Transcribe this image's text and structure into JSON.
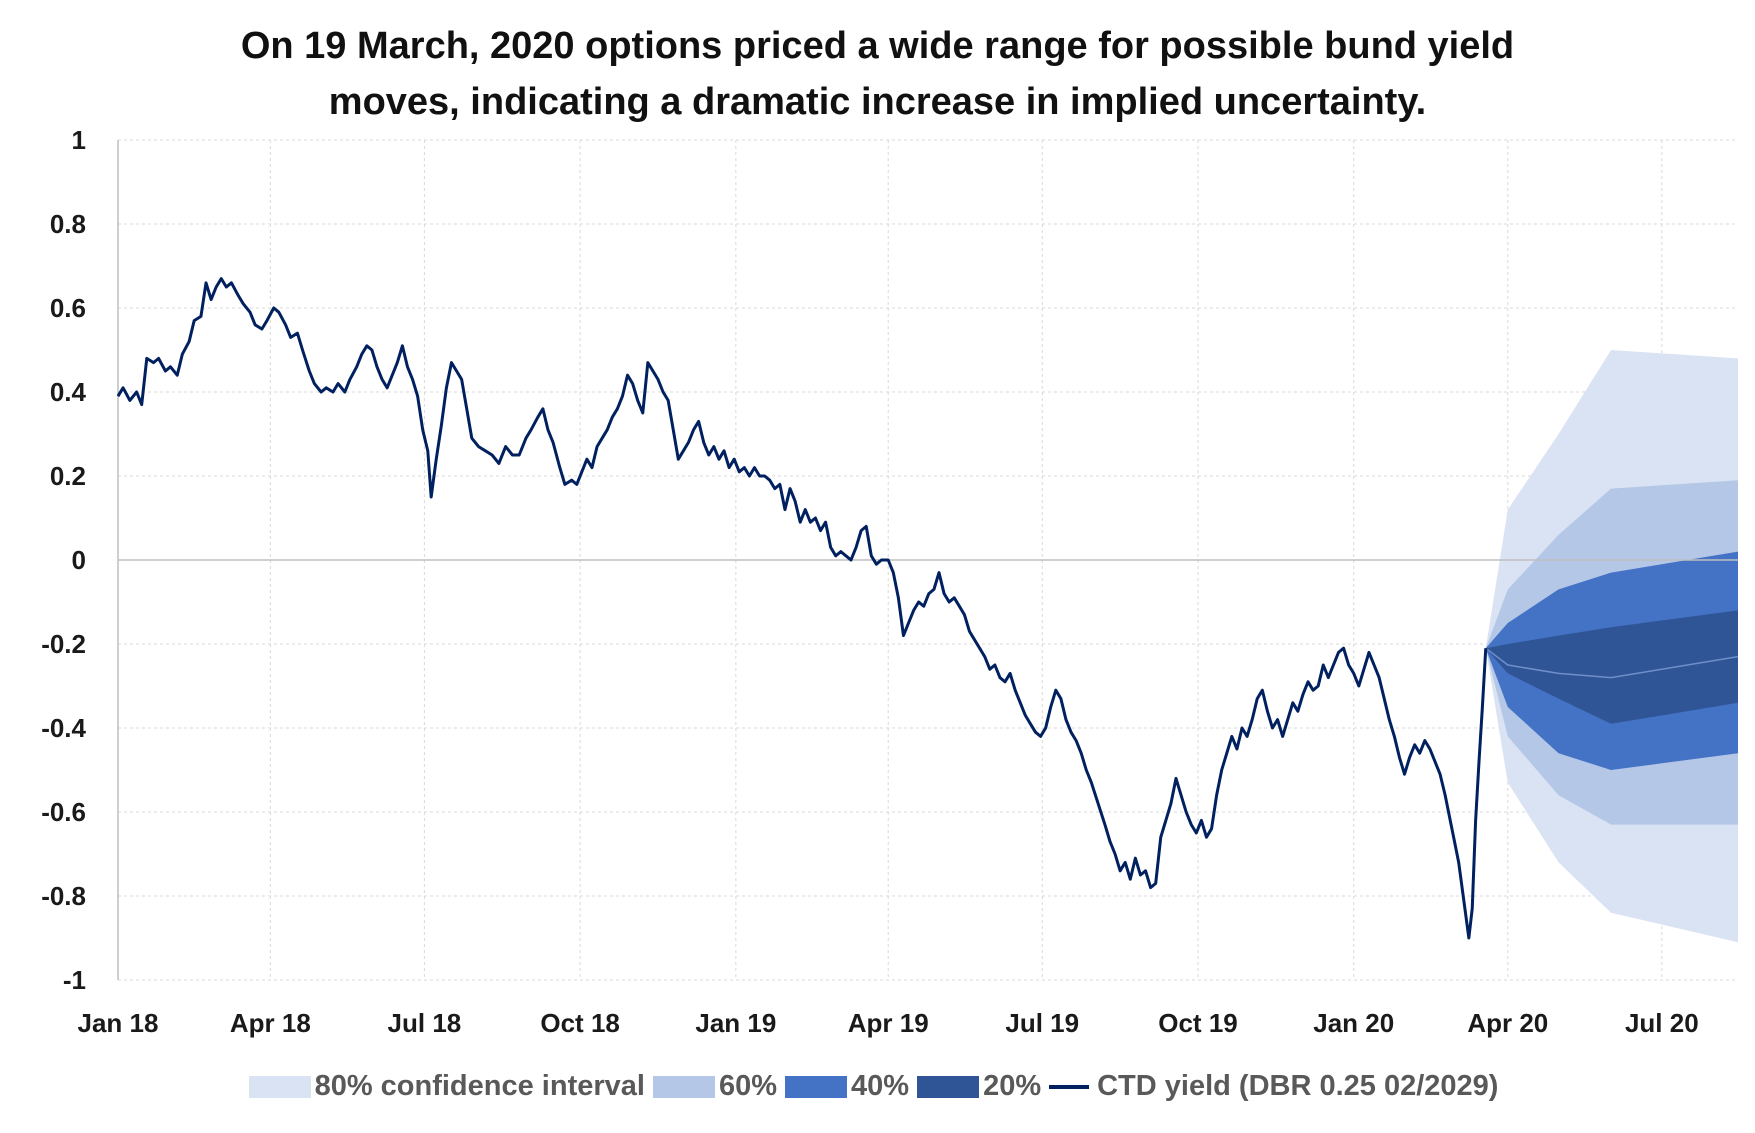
{
  "title": {
    "line1": "On 19 March, 2020 options priced a wide range for possible bund yield",
    "line2": "moves, indicating a dramatic increase in implied uncertainty."
  },
  "legend": [
    {
      "label": "80% confidence interval",
      "color": "#dae3f3",
      "kind": "band"
    },
    {
      "label": "60%",
      "color": "#b4c7e7",
      "kind": "band"
    },
    {
      "label": "40%",
      "color": "#4472c4",
      "kind": "band"
    },
    {
      "label": "20%",
      "color": "#2f5597",
      "kind": "band"
    },
    {
      "label": "CTD yield (DBR 0.25 02/2029)",
      "color": "#002060",
      "kind": "line"
    }
  ],
  "chart_data": {
    "type": "area",
    "title": "On 19 March, 2020 options priced a wide range for possible bund yield moves, indicating a dramatic increase in implied uncertainty.",
    "ylim": [
      -1,
      1
    ],
    "y_ticks": [
      "1",
      "0.8",
      "0.6",
      "0.4",
      "0.2",
      "0",
      "-0.2",
      "-0.4",
      "-0.6",
      "-0.8",
      "-1"
    ],
    "x_range": [
      "2018-01-01",
      "2020-08-15"
    ],
    "x_ticks": [
      {
        "label": "Jan 18",
        "date": "2018-01-01"
      },
      {
        "label": "Apr 18",
        "date": "2018-04-01"
      },
      {
        "label": "Jul 18",
        "date": "2018-07-01"
      },
      {
        "label": "Oct 18",
        "date": "2018-10-01"
      },
      {
        "label": "Jan 19",
        "date": "2019-01-01"
      },
      {
        "label": "Apr 19",
        "date": "2019-04-01"
      },
      {
        "label": "Jul 19",
        "date": "2019-07-01"
      },
      {
        "label": "Oct 19",
        "date": "2019-10-01"
      },
      {
        "label": "Jan 20",
        "date": "2020-01-01"
      },
      {
        "label": "Apr 20",
        "date": "2020-04-01"
      },
      {
        "label": "Jul 20",
        "date": "2020-07-01"
      }
    ],
    "grid": true,
    "legend_position": "bottom",
    "ctd_yield": {
      "name": "CTD yield (DBR 0.25 02/2029)",
      "color": "#002060",
      "points": [
        [
          "2018-01-01",
          0.39
        ],
        [
          "2018-01-04",
          0.41
        ],
        [
          "2018-01-08",
          0.38
        ],
        [
          "2018-01-12",
          0.4
        ],
        [
          "2018-01-15",
          0.37
        ],
        [
          "2018-01-18",
          0.48
        ],
        [
          "2018-01-22",
          0.47
        ],
        [
          "2018-01-25",
          0.48
        ],
        [
          "2018-01-29",
          0.45
        ],
        [
          "2018-02-01",
          0.46
        ],
        [
          "2018-02-05",
          0.44
        ],
        [
          "2018-02-08",
          0.49
        ],
        [
          "2018-02-12",
          0.52
        ],
        [
          "2018-02-15",
          0.57
        ],
        [
          "2018-02-19",
          0.58
        ],
        [
          "2018-02-22",
          0.66
        ],
        [
          "2018-02-25",
          0.62
        ],
        [
          "2018-02-28",
          0.65
        ],
        [
          "2018-03-03",
          0.67
        ],
        [
          "2018-03-06",
          0.65
        ],
        [
          "2018-03-09",
          0.66
        ],
        [
          "2018-03-13",
          0.63
        ],
        [
          "2018-03-16",
          0.61
        ],
        [
          "2018-03-20",
          0.59
        ],
        [
          "2018-03-23",
          0.56
        ],
        [
          "2018-03-27",
          0.55
        ],
        [
          "2018-03-30",
          0.57
        ],
        [
          "2018-04-03",
          0.6
        ],
        [
          "2018-04-06",
          0.59
        ],
        [
          "2018-04-10",
          0.56
        ],
        [
          "2018-04-13",
          0.53
        ],
        [
          "2018-04-17",
          0.54
        ],
        [
          "2018-04-20",
          0.5
        ],
        [
          "2018-04-24",
          0.45
        ],
        [
          "2018-04-27",
          0.42
        ],
        [
          "2018-05-01",
          0.4
        ],
        [
          "2018-05-04",
          0.41
        ],
        [
          "2018-05-08",
          0.4
        ],
        [
          "2018-05-11",
          0.42
        ],
        [
          "2018-05-15",
          0.4
        ],
        [
          "2018-05-18",
          0.43
        ],
        [
          "2018-05-22",
          0.46
        ],
        [
          "2018-05-25",
          0.49
        ],
        [
          "2018-05-28",
          0.51
        ],
        [
          "2018-05-31",
          0.5
        ],
        [
          "2018-06-03",
          0.46
        ],
        [
          "2018-06-06",
          0.43
        ],
        [
          "2018-06-09",
          0.41
        ],
        [
          "2018-06-12",
          0.44
        ],
        [
          "2018-06-15",
          0.47
        ],
        [
          "2018-06-18",
          0.51
        ],
        [
          "2018-06-21",
          0.46
        ],
        [
          "2018-06-24",
          0.43
        ],
        [
          "2018-06-27",
          0.39
        ],
        [
          "2018-06-30",
          0.31
        ],
        [
          "2018-07-03",
          0.26
        ],
        [
          "2018-07-05",
          0.15
        ],
        [
          "2018-07-08",
          0.24
        ],
        [
          "2018-07-11",
          0.32
        ],
        [
          "2018-07-14",
          0.41
        ],
        [
          "2018-07-17",
          0.47
        ],
        [
          "2018-07-20",
          0.45
        ],
        [
          "2018-07-23",
          0.43
        ],
        [
          "2018-07-26",
          0.36
        ],
        [
          "2018-07-29",
          0.29
        ],
        [
          "2018-08-02",
          0.27
        ],
        [
          "2018-08-06",
          0.26
        ],
        [
          "2018-08-10",
          0.25
        ],
        [
          "2018-08-14",
          0.23
        ],
        [
          "2018-08-18",
          0.27
        ],
        [
          "2018-08-22",
          0.25
        ],
        [
          "2018-08-26",
          0.25
        ],
        [
          "2018-08-30",
          0.29
        ],
        [
          "2018-09-02",
          0.31
        ],
        [
          "2018-09-06",
          0.34
        ],
        [
          "2018-09-09",
          0.36
        ],
        [
          "2018-09-12",
          0.31
        ],
        [
          "2018-09-15",
          0.28
        ],
        [
          "2018-09-19",
          0.22
        ],
        [
          "2018-09-22",
          0.18
        ],
        [
          "2018-09-26",
          0.19
        ],
        [
          "2018-09-29",
          0.18
        ],
        [
          "2018-10-02",
          0.21
        ],
        [
          "2018-10-05",
          0.24
        ],
        [
          "2018-10-08",
          0.22
        ],
        [
          "2018-10-11",
          0.27
        ],
        [
          "2018-10-14",
          0.29
        ],
        [
          "2018-10-17",
          0.31
        ],
        [
          "2018-10-20",
          0.34
        ],
        [
          "2018-10-23",
          0.36
        ],
        [
          "2018-10-26",
          0.39
        ],
        [
          "2018-10-29",
          0.44
        ],
        [
          "2018-11-01",
          0.42
        ],
        [
          "2018-11-04",
          0.38
        ],
        [
          "2018-11-07",
          0.35
        ],
        [
          "2018-11-10",
          0.47
        ],
        [
          "2018-11-13",
          0.45
        ],
        [
          "2018-11-16",
          0.43
        ],
        [
          "2018-11-19",
          0.4
        ],
        [
          "2018-11-22",
          0.38
        ],
        [
          "2018-11-25",
          0.31
        ],
        [
          "2018-11-28",
          0.24
        ],
        [
          "2018-12-01",
          0.26
        ],
        [
          "2018-12-04",
          0.28
        ],
        [
          "2018-12-07",
          0.31
        ],
        [
          "2018-12-10",
          0.33
        ],
        [
          "2018-12-13",
          0.28
        ],
        [
          "2018-12-16",
          0.25
        ],
        [
          "2018-12-19",
          0.27
        ],
        [
          "2018-12-22",
          0.24
        ],
        [
          "2018-12-25",
          0.26
        ],
        [
          "2018-12-28",
          0.22
        ],
        [
          "2018-12-31",
          0.24
        ],
        [
          "2019-01-03",
          0.21
        ],
        [
          "2019-01-06",
          0.22
        ],
        [
          "2019-01-09",
          0.2
        ],
        [
          "2019-01-12",
          0.22
        ],
        [
          "2019-01-15",
          0.2
        ],
        [
          "2019-01-18",
          0.2
        ],
        [
          "2019-01-21",
          0.19
        ],
        [
          "2019-01-24",
          0.17
        ],
        [
          "2019-01-27",
          0.18
        ],
        [
          "2019-01-30",
          0.12
        ],
        [
          "2019-02-02",
          0.17
        ],
        [
          "2019-02-05",
          0.14
        ],
        [
          "2019-02-08",
          0.09
        ],
        [
          "2019-02-11",
          0.12
        ],
        [
          "2019-02-14",
          0.09
        ],
        [
          "2019-02-17",
          0.1
        ],
        [
          "2019-02-20",
          0.07
        ],
        [
          "2019-02-23",
          0.09
        ],
        [
          "2019-02-26",
          0.03
        ],
        [
          "2019-03-01",
          0.01
        ],
        [
          "2019-03-04",
          0.02
        ],
        [
          "2019-03-07",
          0.01
        ],
        [
          "2019-03-10",
          0.0
        ],
        [
          "2019-03-13",
          0.03
        ],
        [
          "2019-03-16",
          0.07
        ],
        [
          "2019-03-19",
          0.08
        ],
        [
          "2019-03-22",
          0.01
        ],
        [
          "2019-03-25",
          -0.01
        ],
        [
          "2019-03-28",
          0.0
        ],
        [
          "2019-04-01",
          0.0
        ],
        [
          "2019-04-04",
          -0.03
        ],
        [
          "2019-04-07",
          -0.09
        ],
        [
          "2019-04-10",
          -0.18
        ],
        [
          "2019-04-13",
          -0.15
        ],
        [
          "2019-04-16",
          -0.12
        ],
        [
          "2019-04-19",
          -0.1
        ],
        [
          "2019-04-22",
          -0.11
        ],
        [
          "2019-04-25",
          -0.08
        ],
        [
          "2019-04-28",
          -0.07
        ],
        [
          "2019-05-01",
          -0.03
        ],
        [
          "2019-05-04",
          -0.08
        ],
        [
          "2019-05-07",
          -0.1
        ],
        [
          "2019-05-10",
          -0.09
        ],
        [
          "2019-05-13",
          -0.11
        ],
        [
          "2019-05-16",
          -0.13
        ],
        [
          "2019-05-19",
          -0.17
        ],
        [
          "2019-05-22",
          -0.19
        ],
        [
          "2019-05-25",
          -0.21
        ],
        [
          "2019-05-28",
          -0.23
        ],
        [
          "2019-05-31",
          -0.26
        ],
        [
          "2019-06-03",
          -0.25
        ],
        [
          "2019-06-06",
          -0.28
        ],
        [
          "2019-06-09",
          -0.29
        ],
        [
          "2019-06-12",
          -0.27
        ],
        [
          "2019-06-15",
          -0.31
        ],
        [
          "2019-06-18",
          -0.34
        ],
        [
          "2019-06-21",
          -0.37
        ],
        [
          "2019-06-24",
          -0.39
        ],
        [
          "2019-06-27",
          -0.41
        ],
        [
          "2019-06-30",
          -0.42
        ],
        [
          "2019-07-03",
          -0.4
        ],
        [
          "2019-07-06",
          -0.35
        ],
        [
          "2019-07-09",
          -0.31
        ],
        [
          "2019-07-12",
          -0.33
        ],
        [
          "2019-07-15",
          -0.38
        ],
        [
          "2019-07-18",
          -0.41
        ],
        [
          "2019-07-21",
          -0.43
        ],
        [
          "2019-07-24",
          -0.46
        ],
        [
          "2019-07-27",
          -0.5
        ],
        [
          "2019-07-30",
          -0.53
        ],
        [
          "2019-08-03",
          -0.58
        ],
        [
          "2019-08-07",
          -0.63
        ],
        [
          "2019-08-10",
          -0.67
        ],
        [
          "2019-08-13",
          -0.7
        ],
        [
          "2019-08-16",
          -0.74
        ],
        [
          "2019-08-19",
          -0.72
        ],
        [
          "2019-08-22",
          -0.76
        ],
        [
          "2019-08-25",
          -0.71
        ],
        [
          "2019-08-28",
          -0.75
        ],
        [
          "2019-08-31",
          -0.74
        ],
        [
          "2019-09-03",
          -0.78
        ],
        [
          "2019-09-06",
          -0.77
        ],
        [
          "2019-09-09",
          -0.66
        ],
        [
          "2019-09-12",
          -0.62
        ],
        [
          "2019-09-15",
          -0.58
        ],
        [
          "2019-09-18",
          -0.52
        ],
        [
          "2019-09-21",
          -0.56
        ],
        [
          "2019-09-24",
          -0.6
        ],
        [
          "2019-09-27",
          -0.63
        ],
        [
          "2019-09-30",
          -0.65
        ],
        [
          "2019-10-03",
          -0.62
        ],
        [
          "2019-10-06",
          -0.66
        ],
        [
          "2019-10-09",
          -0.64
        ],
        [
          "2019-10-12",
          -0.56
        ],
        [
          "2019-10-15",
          -0.5
        ],
        [
          "2019-10-18",
          -0.46
        ],
        [
          "2019-10-21",
          -0.42
        ],
        [
          "2019-10-24",
          -0.45
        ],
        [
          "2019-10-27",
          -0.4
        ],
        [
          "2019-10-30",
          -0.42
        ],
        [
          "2019-11-02",
          -0.38
        ],
        [
          "2019-11-05",
          -0.33
        ],
        [
          "2019-11-08",
          -0.31
        ],
        [
          "2019-11-11",
          -0.36
        ],
        [
          "2019-11-14",
          -0.4
        ],
        [
          "2019-11-17",
          -0.38
        ],
        [
          "2019-11-20",
          -0.42
        ],
        [
          "2019-11-23",
          -0.38
        ],
        [
          "2019-11-26",
          -0.34
        ],
        [
          "2019-11-29",
          -0.36
        ],
        [
          "2019-12-02",
          -0.32
        ],
        [
          "2019-12-05",
          -0.29
        ],
        [
          "2019-12-08",
          -0.31
        ],
        [
          "2019-12-11",
          -0.3
        ],
        [
          "2019-12-14",
          -0.25
        ],
        [
          "2019-12-17",
          -0.28
        ],
        [
          "2019-12-20",
          -0.25
        ],
        [
          "2019-12-23",
          -0.22
        ],
        [
          "2019-12-26",
          -0.21
        ],
        [
          "2019-12-29",
          -0.25
        ],
        [
          "2020-01-01",
          -0.27
        ],
        [
          "2020-01-04",
          -0.3
        ],
        [
          "2020-01-07",
          -0.26
        ],
        [
          "2020-01-10",
          -0.22
        ],
        [
          "2020-01-13",
          -0.25
        ],
        [
          "2020-01-16",
          -0.28
        ],
        [
          "2020-01-19",
          -0.33
        ],
        [
          "2020-01-22",
          -0.38
        ],
        [
          "2020-01-25",
          -0.42
        ],
        [
          "2020-01-28",
          -0.47
        ],
        [
          "2020-01-31",
          -0.51
        ],
        [
          "2020-02-03",
          -0.47
        ],
        [
          "2020-02-06",
          -0.44
        ],
        [
          "2020-02-09",
          -0.46
        ],
        [
          "2020-02-12",
          -0.43
        ],
        [
          "2020-02-15",
          -0.45
        ],
        [
          "2020-02-18",
          -0.48
        ],
        [
          "2020-02-21",
          -0.51
        ],
        [
          "2020-02-24",
          -0.56
        ],
        [
          "2020-02-27",
          -0.62
        ],
        [
          "2020-03-01",
          -0.68
        ],
        [
          "2020-03-03",
          -0.72
        ],
        [
          "2020-03-05",
          -0.78
        ],
        [
          "2020-03-07",
          -0.84
        ],
        [
          "2020-03-09",
          -0.9
        ],
        [
          "2020-03-11",
          -0.83
        ],
        [
          "2020-03-13",
          -0.62
        ],
        [
          "2020-03-15",
          -0.48
        ],
        [
          "2020-03-17",
          -0.35
        ],
        [
          "2020-03-19",
          -0.21
        ]
      ]
    },
    "fan_chart": {
      "start": "2020-03-19",
      "start_value": -0.21,
      "x": [
        "2020-03-19",
        "2020-04-01",
        "2020-05-01",
        "2020-06-01",
        "2020-08-15"
      ],
      "bands": [
        {
          "name": "80% confidence interval",
          "color": "#dae3f3",
          "upper": [
            -0.21,
            0.12,
            0.3,
            0.5,
            0.48
          ],
          "lower": [
            -0.21,
            -0.53,
            -0.72,
            -0.84,
            -0.91
          ]
        },
        {
          "name": "60%",
          "color": "#b4c7e7",
          "upper": [
            -0.21,
            -0.07,
            0.06,
            0.17,
            0.19
          ],
          "lower": [
            -0.21,
            -0.42,
            -0.56,
            -0.63,
            -0.63
          ]
        },
        {
          "name": "40%",
          "color": "#4472c4",
          "upper": [
            -0.21,
            -0.15,
            -0.07,
            -0.03,
            0.02
          ],
          "lower": [
            -0.21,
            -0.35,
            -0.46,
            -0.5,
            -0.46
          ]
        },
        {
          "name": "20%",
          "color": "#2f5597",
          "upper": [
            -0.21,
            -0.2,
            -0.18,
            -0.16,
            -0.12
          ],
          "lower": [
            -0.21,
            -0.27,
            -0.33,
            -0.39,
            -0.34
          ]
        }
      ],
      "median": [
        -0.21,
        -0.25,
        -0.27,
        -0.28,
        -0.23
      ]
    }
  }
}
